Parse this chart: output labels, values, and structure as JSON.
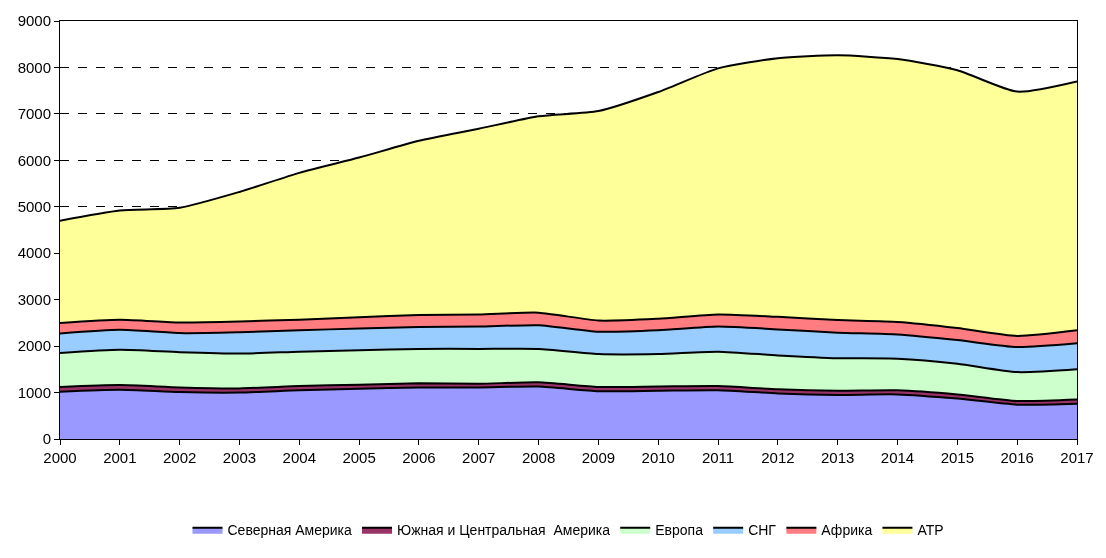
{
  "chart_data": {
    "type": "area",
    "stacked": true,
    "categories": [
      "2000",
      "2001",
      "2002",
      "2003",
      "2004",
      "2005",
      "2006",
      "2007",
      "2008",
      "2009",
      "2010",
      "2011",
      "2012",
      "2013",
      "2014",
      "2015",
      "2016",
      "2017"
    ],
    "series": [
      {
        "name": "Северная Америка",
        "color": "#9999ff",
        "values": [
          1020,
          1060,
          1010,
          1000,
          1050,
          1080,
          1110,
          1110,
          1130,
          1030,
          1040,
          1050,
          980,
          950,
          960,
          870,
          740,
          760
        ]
      },
      {
        "name": "Южная и Центральная  Америка",
        "color": "#993366",
        "values": [
          100,
          100,
          100,
          90,
          90,
          90,
          90,
          80,
          90,
          90,
          90,
          90,
          90,
          90,
          90,
          90,
          80,
          90
        ]
      },
      {
        "name": "Европа",
        "color": "#ccffcc",
        "values": [
          730,
          760,
          760,
          750,
          740,
          740,
          740,
          750,
          720,
          710,
          700,
          740,
          730,
          700,
          680,
          660,
          620,
          650
        ]
      },
      {
        "name": "СНГ",
        "color": "#99ccff",
        "values": [
          420,
          430,
          410,
          460,
          460,
          470,
          470,
          480,
          510,
          480,
          510,
          540,
          560,
          550,
          520,
          510,
          540,
          560
        ]
      },
      {
        "name": "Африка",
        "color": "#ff7c80",
        "values": [
          230,
          220,
          230,
          230,
          230,
          240,
          260,
          260,
          270,
          240,
          250,
          260,
          270,
          270,
          270,
          260,
          240,
          280
        ]
      },
      {
        "name": "АТР",
        "color": "#ffff99",
        "values": [
          2200,
          2350,
          2470,
          2790,
          3160,
          3440,
          3750,
          4000,
          4230,
          4510,
          4880,
          5300,
          5570,
          5700,
          5660,
          5550,
          5260,
          5360
        ]
      }
    ],
    "ylim": [
      0,
      9000
    ],
    "yticks": [
      0,
      1000,
      2000,
      3000,
      4000,
      5000,
      6000,
      7000,
      8000,
      9000
    ],
    "grid": "y",
    "legend": "bottom"
  }
}
